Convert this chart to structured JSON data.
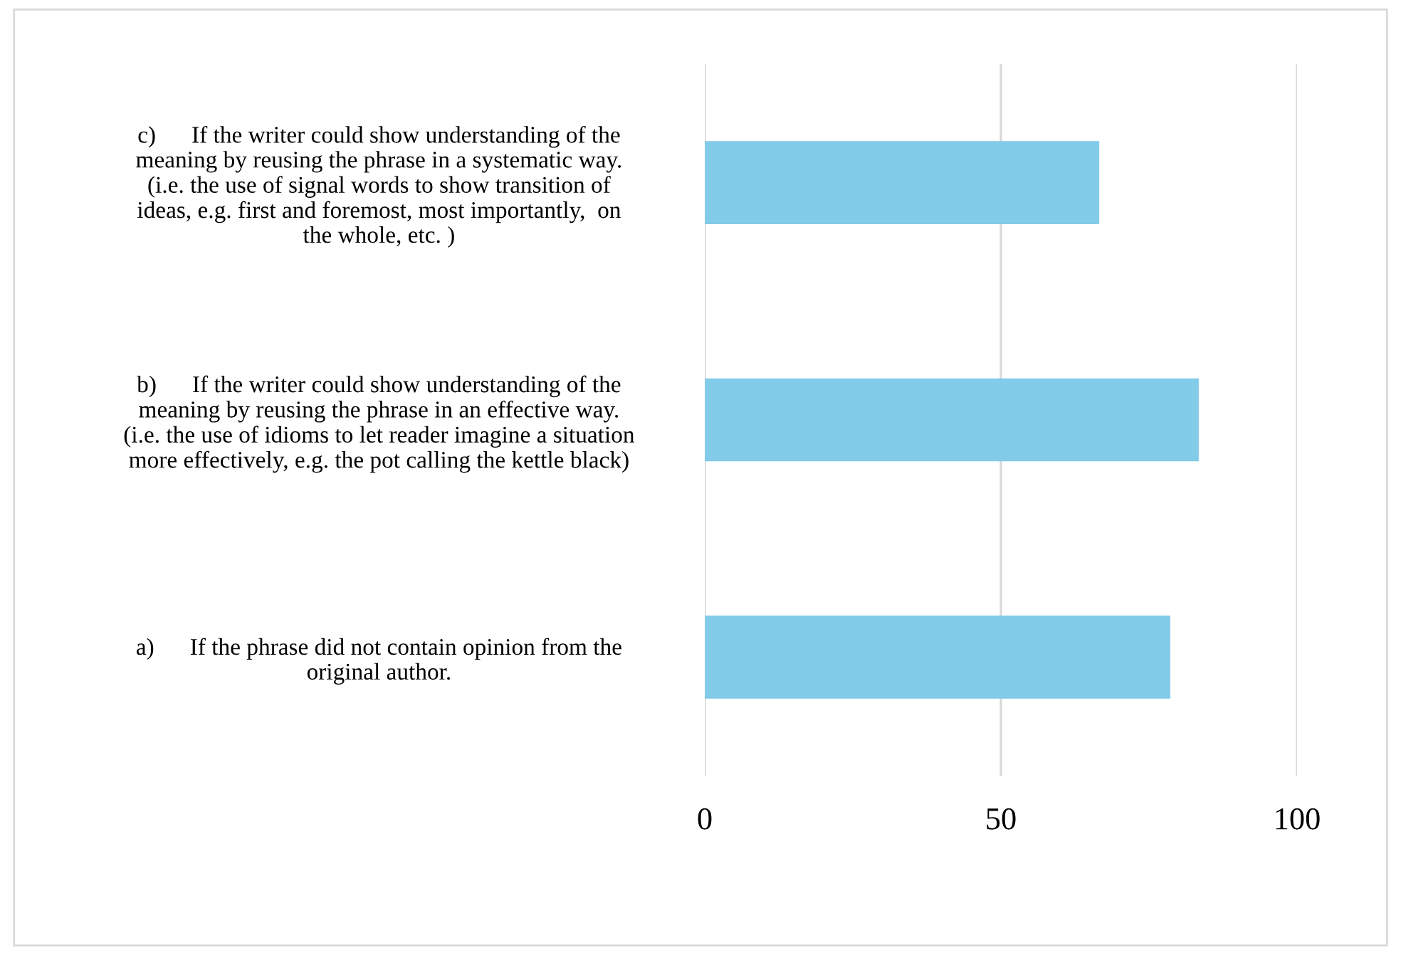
{
  "chart_data": {
    "type": "bar",
    "orientation": "horizontal",
    "categories": [
      "c)      If the writer could show understanding of the\nmeaning by reusing the phrase in a systematic way.\n(i.e. the use of signal words to show transition of\nideas, e.g. first and foremost, most importantly,  on\nthe whole, etc. )",
      "b)      If the writer could show understanding of the\nmeaning by reusing the phrase in an effective way.\n(i.e. the use of idioms to let reader imagine a situation\nmore effectively, e.g. the pot calling the kettle black)",
      "a)      If the phrase did not contain opinion from the\noriginal author."
    ],
    "values": [
      66.6,
      83.4,
      78.6
    ],
    "color": "#82cbe9",
    "xlim": [
      0,
      100
    ],
    "xticks": [
      0,
      50,
      100
    ],
    "grid": "x"
  }
}
